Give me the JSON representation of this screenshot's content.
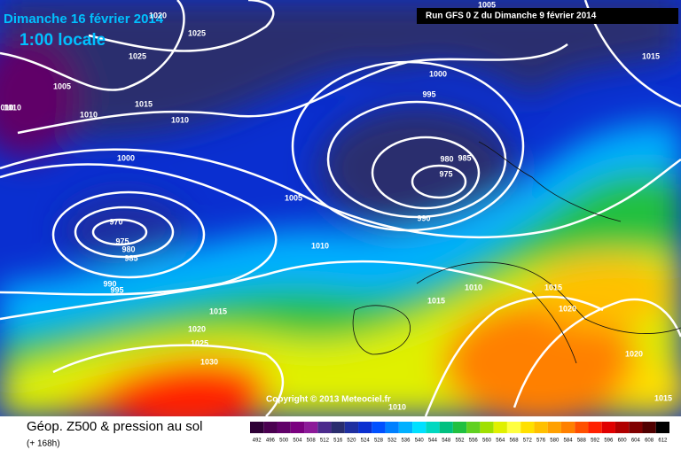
{
  "header": {
    "date": "Dimanche 16 février 2014",
    "time": "1:00 locale",
    "run": "Run GFS 0 Z du Dimanche 9 février 2014"
  },
  "isobar_labels": [
    1020,
    1025,
    1025,
    1005,
    "010",
    1010,
    1015,
    1010,
    1000,
    1005,
    1000,
    995,
    980,
    985,
    975,
    990,
    1005,
    970,
    975,
    980,
    985,
    990,
    995,
    1010,
    1015,
    1020,
    1025,
    1030,
    1010,
    1015,
    1010,
    1015,
    1020,
    1020,
    1015,
    1015,
    1010
  ],
  "copyright": "Copyright © 2013 Meteociel.fr",
  "footer": {
    "title": "Géop. Z500 & pression au sol",
    "lead": "(+ 168h)"
  },
  "legend": {
    "values": [
      492,
      496,
      500,
      504,
      508,
      512,
      516,
      520,
      524,
      528,
      532,
      536,
      540,
      544,
      548,
      552,
      556,
      560,
      564,
      568,
      572,
      576,
      580,
      584,
      588,
      592,
      596,
      600,
      604,
      608,
      612
    ],
    "colors": [
      "#2e0036",
      "#4a0050",
      "#600068",
      "#7a007f",
      "#8c1a99",
      "#4b2a8c",
      "#2a2d6e",
      "#1f2fa0",
      "#0a2fd0",
      "#0050ff",
      "#0080ff",
      "#00b0ff",
      "#00e0ff",
      "#00d8c0",
      "#00c080",
      "#20c040",
      "#60d020",
      "#a0e000",
      "#e0f000",
      "#ffff40",
      "#ffe000",
      "#ffc000",
      "#ffa000",
      "#ff8000",
      "#ff5000",
      "#ff2000",
      "#e00000",
      "#b00000",
      "#800000",
      "#500000",
      "#000000"
    ]
  }
}
